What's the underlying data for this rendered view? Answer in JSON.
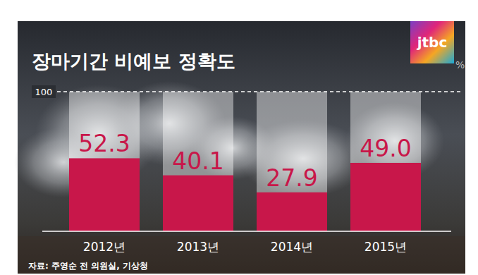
{
  "chart_data": {
    "type": "bar",
    "title": "장마기간 비예보 정확도",
    "unit": "%",
    "logo": "jtbc",
    "categories": [
      "2012년",
      "2013년",
      "2014년",
      "2015년"
    ],
    "values": [
      52.3,
      40.1,
      27.9,
      49.0
    ],
    "value_labels": [
      "52.3",
      "40.1",
      "27.9",
      "49.0"
    ],
    "color": "#c8174a",
    "ylim": [
      0,
      100
    ],
    "yticks": [
      100
    ],
    "grid": true,
    "data_labels": true,
    "source": "자료: 주영순 전 의원실, 기상청"
  }
}
